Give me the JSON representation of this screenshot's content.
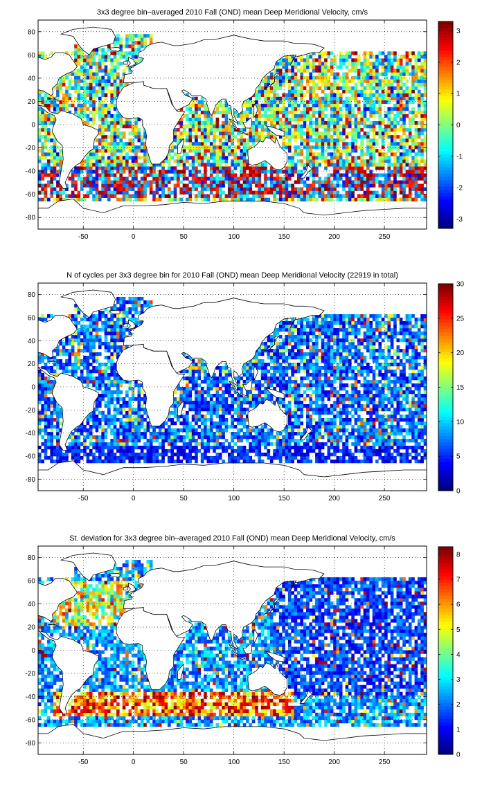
{
  "chart_data": [
    {
      "type": "heatmap",
      "title": "3x3 degree bin–averaged 2010 Fall (OND) mean Deep Meridional Velocity, cm/s",
      "xlabel": "",
      "ylabel": "",
      "xlim": [
        -95,
        292
      ],
      "ylim": [
        -90,
        90
      ],
      "x_ticks": [
        "-50",
        "0",
        "50",
        "100",
        "150",
        "200",
        "250"
      ],
      "y_ticks": [
        "80",
        "60",
        "40",
        "20",
        "0",
        "-20",
        "-40",
        "-60",
        "-80"
      ],
      "grid": true,
      "bin_size_deg": 3,
      "colorbar": {
        "min": -3.3,
        "max": 3.3,
        "ticks": [
          "3",
          "2",
          "1",
          "0",
          "-1",
          "-2",
          "-3"
        ]
      },
      "colormap": "jet"
    },
    {
      "type": "heatmap",
      "title": "N of cycles per 3x3 degree bin for 2010 Fall (OND) mean Deep Meridional Velocity (22919 in total)",
      "xlabel": "",
      "ylabel": "",
      "xlim": [
        -95,
        292
      ],
      "ylim": [
        -90,
        90
      ],
      "x_ticks": [
        "-50",
        "0",
        "50",
        "100",
        "150",
        "200",
        "250"
      ],
      "y_ticks": [
        "80",
        "60",
        "40",
        "20",
        "0",
        "-20",
        "-40",
        "-60",
        "-80"
      ],
      "grid": true,
      "bin_size_deg": 3,
      "total_cycles": 22919,
      "colorbar": {
        "min": 0,
        "max": 30,
        "ticks": [
          "30",
          "25",
          "20",
          "15",
          "10",
          "5",
          "0"
        ]
      },
      "colormap": "jet"
    },
    {
      "type": "heatmap",
      "title": "St. deviation for 3x3 degree bin–averaged 2010 Fall (OND) mean Deep Meridional Velocity, cm/s",
      "xlabel": "",
      "ylabel": "",
      "xlim": [
        -95,
        292
      ],
      "ylim": [
        -90,
        90
      ],
      "x_ticks": [
        "-50",
        "0",
        "50",
        "100",
        "150",
        "200",
        "250"
      ],
      "y_ticks": [
        "80",
        "60",
        "40",
        "20",
        "0",
        "-20",
        "-40",
        "-60",
        "-80"
      ],
      "grid": true,
      "bin_size_deg": 3,
      "colorbar": {
        "min": 0,
        "max": 8.3,
        "ticks": [
          "8",
          "7",
          "6",
          "5",
          "4",
          "3",
          "2",
          "1",
          "0"
        ]
      },
      "colormap": "jet"
    }
  ]
}
